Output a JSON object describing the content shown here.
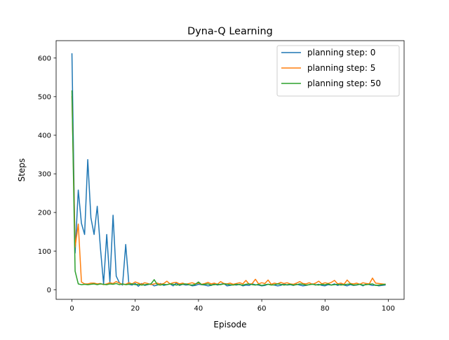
{
  "chart_data": {
    "type": "line",
    "title": "Dyna-Q Learning",
    "xlabel": "Episode",
    "ylabel": "Steps",
    "xlim": [
      -5,
      105
    ],
    "ylim": [
      -25,
      645
    ],
    "xticks": [
      0,
      20,
      40,
      60,
      80,
      100
    ],
    "yticks": [
      0,
      100,
      200,
      300,
      400,
      500,
      600
    ],
    "grid": false,
    "legend_position": "upper right",
    "x": [
      0,
      1,
      2,
      3,
      4,
      5,
      6,
      7,
      8,
      9,
      10,
      11,
      12,
      13,
      14,
      15,
      16,
      17,
      18,
      19,
      20,
      21,
      22,
      23,
      24,
      25,
      26,
      27,
      28,
      29,
      30,
      31,
      32,
      33,
      34,
      35,
      36,
      37,
      38,
      39,
      40,
      41,
      42,
      43,
      44,
      45,
      46,
      47,
      48,
      49,
      50,
      51,
      52,
      53,
      54,
      55,
      56,
      57,
      58,
      59,
      60,
      61,
      62,
      63,
      64,
      65,
      66,
      67,
      68,
      69,
      70,
      71,
      72,
      73,
      74,
      75,
      76,
      77,
      78,
      79,
      80,
      81,
      82,
      83,
      84,
      85,
      86,
      87,
      88,
      89,
      90,
      91,
      92,
      93,
      94,
      95,
      96,
      97,
      98,
      99
    ],
    "series": [
      {
        "name": "planning step: 0",
        "color": "#1f77b4",
        "values": [
          611,
          95,
          258,
          172,
          143,
          337,
          186,
          143,
          216,
          108,
          15,
          143,
          19,
          193,
          35,
          18,
          12,
          117,
          14,
          12,
          16,
          9,
          16,
          11,
          13,
          15,
          10,
          12,
          16,
          11,
          13,
          15,
          10,
          17,
          11,
          14,
          12,
          13,
          10,
          11,
          14,
          13,
          12,
          10,
          11,
          15,
          12,
          14,
          16,
          10,
          11,
          13,
          12,
          14,
          10,
          12,
          11,
          15,
          13,
          12,
          10,
          11,
          14,
          13,
          12,
          10,
          11,
          15,
          12,
          13,
          11,
          14,
          12,
          10,
          11,
          13,
          15,
          12,
          14,
          11,
          10,
          13,
          12,
          15,
          11,
          14,
          12,
          10,
          13,
          11,
          12,
          14,
          10,
          15,
          13,
          11,
          12,
          10,
          11,
          12
        ]
      },
      {
        "name": "planning step: 5",
        "color": "#ff7f0e",
        "values": [
          500,
          110,
          170,
          20,
          15,
          15,
          17,
          17,
          15,
          16,
          13,
          15,
          18,
          16,
          21,
          17,
          14,
          14,
          18,
          15,
          20,
          17,
          14,
          18,
          16,
          13,
          15,
          17,
          14,
          16,
          22,
          15,
          18,
          19,
          15,
          17,
          14,
          16,
          18,
          15,
          17,
          14,
          16,
          19,
          15,
          17,
          14,
          21,
          16,
          15,
          17,
          14,
          16,
          18,
          15,
          24,
          14,
          16,
          27,
          15,
          18,
          16,
          25,
          14,
          17,
          15,
          19,
          16,
          18,
          15,
          14,
          17,
          21,
          16,
          15,
          18,
          14,
          17,
          22,
          15,
          18,
          16,
          19,
          24,
          15,
          17,
          14,
          25,
          16,
          15,
          17,
          14,
          18,
          16,
          15,
          30,
          17,
          16,
          15,
          14
        ]
      },
      {
        "name": "planning step: 50",
        "color": "#2ca02c",
        "values": [
          515,
          48,
          15,
          13,
          14,
          13,
          14,
          15,
          13,
          15,
          14,
          13,
          15,
          14,
          16,
          13,
          15,
          13,
          14,
          15,
          13,
          14,
          12,
          13,
          14,
          15,
          26,
          13,
          12,
          14,
          13,
          15,
          14,
          12,
          13,
          14,
          15,
          13,
          12,
          14,
          20,
          13,
          14,
          15,
          12,
          13,
          14,
          13,
          15,
          14,
          13,
          12,
          14,
          13,
          12,
          14,
          15,
          13,
          12,
          14,
          11,
          13,
          14,
          12,
          13,
          15,
          14,
          12,
          13,
          14,
          12,
          13,
          15,
          14,
          12,
          13,
          14,
          13,
          12,
          14,
          13,
          15,
          12,
          13,
          14,
          12,
          13,
          14,
          15,
          12,
          13,
          14,
          12,
          13,
          14,
          15,
          11,
          12,
          13,
          14
        ]
      }
    ]
  }
}
